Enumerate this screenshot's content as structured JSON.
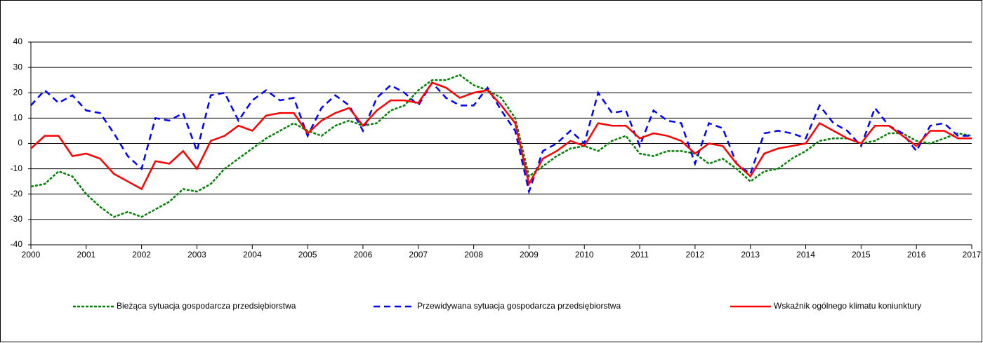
{
  "chart_data": {
    "type": "line",
    "x": [
      2000,
      2000.25,
      2000.5,
      2000.75,
      2001,
      2001.25,
      2001.5,
      2001.75,
      2002,
      2002.25,
      2002.5,
      2002.75,
      2003,
      2003.25,
      2003.5,
      2003.75,
      2004,
      2004.25,
      2004.5,
      2004.75,
      2005,
      2005.25,
      2005.5,
      2005.75,
      2006,
      2006.25,
      2006.5,
      2006.75,
      2007,
      2007.25,
      2007.5,
      2007.75,
      2008,
      2008.25,
      2008.5,
      2008.75,
      2009,
      2009.25,
      2009.5,
      2009.75,
      2010,
      2010.25,
      2010.5,
      2010.75,
      2011,
      2011.25,
      2011.5,
      2011.75,
      2012,
      2012.25,
      2012.5,
      2012.75,
      2013,
      2013.25,
      2013.5,
      2013.75,
      2014,
      2014.25,
      2014.5,
      2014.75,
      2015,
      2015.25,
      2015.5,
      2015.75,
      2016,
      2016.25,
      2016.5,
      2016.75,
      2017
    ],
    "series": [
      {
        "name": "Bieżąca sytuacja gospodarcza przedsiębiorstwa",
        "color": "#008000",
        "style": "dotted",
        "values": [
          -17,
          -16,
          -11,
          -13,
          -20,
          -25,
          -29,
          -27,
          -29,
          -26,
          -23,
          -18,
          -19,
          -16,
          -10,
          -6,
          -2,
          2,
          5,
          8,
          5,
          3,
          7,
          9,
          7,
          8,
          13,
          15,
          21,
          25,
          25,
          27,
          23,
          21,
          18,
          10,
          -13,
          -9,
          -5,
          -2,
          -1,
          -3,
          1,
          3,
          -4,
          -5,
          -3,
          -3,
          -4,
          -8,
          -6,
          -10,
          -15,
          -11,
          -10,
          -6,
          -3,
          1,
          2,
          2,
          0,
          1,
          4,
          4,
          1,
          0,
          2,
          4,
          3
        ]
      },
      {
        "name": "Przewidywana sytuacja gospodarcza przedsiębiorstwa",
        "color": "#0000ff",
        "style": "dashed",
        "values": [
          15,
          21,
          16,
          19,
          13,
          12,
          4,
          -5,
          -10,
          10,
          9,
          12,
          -3,
          19,
          20,
          9,
          17,
          21,
          17,
          18,
          3,
          14,
          19,
          15,
          5,
          18,
          23,
          20,
          15,
          24,
          18,
          15,
          15,
          22,
          13,
          5,
          -19,
          -3,
          0,
          5,
          0,
          20,
          12,
          13,
          -1,
          13,
          9,
          8,
          -8,
          8,
          6,
          -8,
          -12,
          4,
          5,
          4,
          2,
          15,
          8,
          5,
          -1,
          14,
          7,
          4,
          -3,
          7,
          8,
          3,
          3
        ]
      },
      {
        "name": "Wskaźnik ogólnego klimatu koniunktury",
        "color": "#ff0000",
        "style": "solid",
        "values": [
          -2,
          3,
          3,
          -5,
          -4,
          -6,
          -12,
          -15,
          -18,
          -7,
          -8,
          -3,
          -10,
          1,
          3,
          7,
          5,
          11,
          12,
          12,
          4,
          9,
          12,
          14,
          7,
          13,
          17,
          17,
          16,
          24,
          22,
          18,
          20,
          21,
          15,
          8,
          -16,
          -6,
          -3,
          1,
          -1,
          8,
          7,
          7,
          2,
          4,
          3,
          1,
          -4,
          0,
          -1,
          -8,
          -13,
          -4,
          -2,
          -1,
          0,
          8,
          5,
          2,
          0,
          7,
          7,
          3,
          -1,
          5,
          5,
          2,
          2
        ]
      }
    ],
    "xlim": [
      2000,
      2017
    ],
    "xticks": [
      2000,
      2001,
      2002,
      2003,
      2004,
      2005,
      2006,
      2007,
      2008,
      2009,
      2010,
      2011,
      2012,
      2013,
      2014,
      2015,
      2016,
      2017
    ],
    "ylim": [
      -40,
      40
    ],
    "yticks": [
      -40,
      -30,
      -20,
      -10,
      0,
      10,
      20,
      30,
      40
    ],
    "grid": true,
    "legend": "bottom"
  }
}
